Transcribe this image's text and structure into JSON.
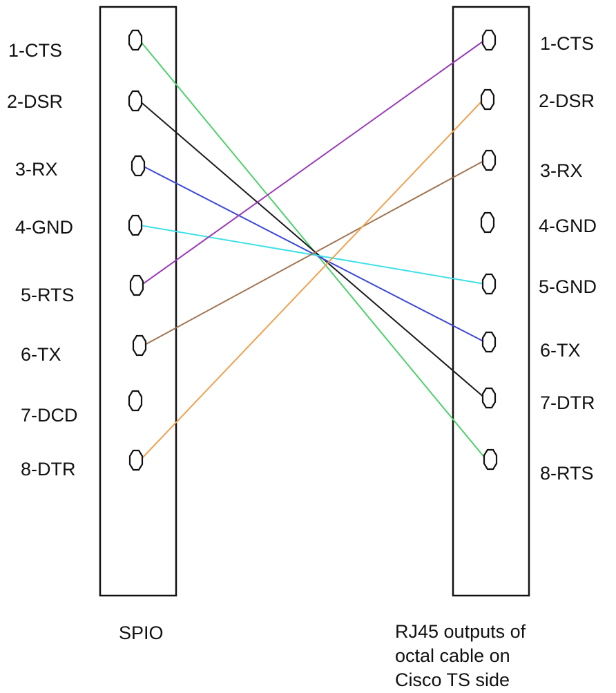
{
  "left_connector": {
    "caption": "SPIO",
    "pins": [
      "1-CTS",
      "2-DSR",
      "3-RX",
      "4-GND",
      "5-RTS",
      "6-TX",
      "7-DCD",
      "8-DTR"
    ]
  },
  "right_connector": {
    "caption_lines": [
      "RJ45 outputs of",
      "octal cable on",
      "Cisco TS side"
    ],
    "pins": [
      "1-CTS",
      "2-DSR",
      "3-RX",
      "4-GND",
      "5-GND",
      "6-TX",
      "7-DTR",
      "8-RTS"
    ]
  },
  "wires": [
    {
      "from": "1-CTS",
      "to": "8-RTS",
      "color": "#4dd06a"
    },
    {
      "from": "2-DSR",
      "to": "7-DTR",
      "color": "#1a1a1a"
    },
    {
      "from": "3-RX",
      "to": "6-TX",
      "color": "#3a48d8"
    },
    {
      "from": "4-GND",
      "to": "5-GND",
      "color": "#3fe0e8"
    },
    {
      "from": "5-RTS",
      "to": "1-CTS",
      "color": "#9a3ab8"
    },
    {
      "from": "6-TX",
      "to": "3-RX",
      "color": "#a07452"
    },
    {
      "from": "8-DTR",
      "to": "2-DSR",
      "color": "#f0a050"
    }
  ]
}
